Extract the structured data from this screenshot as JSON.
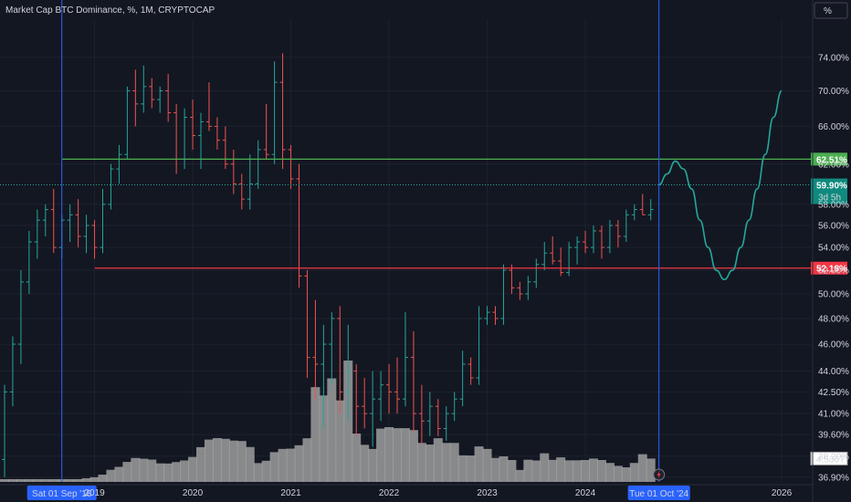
{
  "header": {
    "title": "Market Cap BTC Dominance, %, 1M, CRYPTOCAP",
    "scale_button": "%"
  },
  "colors": {
    "background": "#131722",
    "up": "#26a69a",
    "down": "#ef5350",
    "volume": "#9e9e9e",
    "cursor": "#2962ff",
    "resistance": "#4caf50",
    "support": "#f23645",
    "projection": "#26a69a",
    "text": "#d1d4dc"
  },
  "chart_data": {
    "type": "candlestick",
    "title": "Market Cap BTC Dominance, %, 1M, CRYPTOCAP",
    "y_axis": {
      "scale": "log",
      "ticks": [
        "74.00%",
        "70.00%",
        "66.00%",
        "62.00%",
        "58.00%",
        "56.00%",
        "54.00%",
        "52.00%",
        "50.00%",
        "48.00%",
        "46.00%",
        "44.00%",
        "42.50%",
        "41.00%",
        "39.60%",
        "38.20%",
        "36.90%"
      ],
      "range": [
        36.5,
        78
      ]
    },
    "x_axis": {
      "ticks": [
        "2019",
        "2020",
        "2021",
        "2022",
        "2023",
        "2024",
        "2026"
      ],
      "range": [
        "2018-02",
        "2026-02"
      ]
    },
    "cursor_labels": {
      "left": "Sat 01 Sep '18",
      "right": "Tue 01 Oct '24"
    },
    "horizontal_levels": [
      {
        "label": "62.51%",
        "value": 62.51,
        "start": "2018-09"
      },
      {
        "label": "52.18%",
        "value": 52.18,
        "start": "2019-01"
      }
    ],
    "current_price": {
      "label": "59.90%",
      "value": 59.9,
      "countdown": "3d 5h"
    },
    "volume_label": "4.536T",
    "ohlc": [
      [
        "2018-02",
        38.0,
        43.0,
        36.9,
        42.5
      ],
      [
        "2018-03",
        42.5,
        46.6,
        41.5,
        46.0
      ],
      [
        "2018-04",
        46.0,
        52.0,
        44.5,
        51.0
      ],
      [
        "2018-05",
        51.0,
        55.5,
        50.0,
        54.5
      ],
      [
        "2018-06",
        54.5,
        57.5,
        53.0,
        56.5
      ],
      [
        "2018-07",
        56.5,
        58.0,
        55.0,
        57.5
      ],
      [
        "2018-08",
        57.5,
        59.5,
        53.5,
        54.0
      ],
      [
        "2018-09",
        54.0,
        57.0,
        53.0,
        56.5
      ],
      [
        "2018-10",
        56.5,
        58.0,
        54.5,
        57.0
      ],
      [
        "2018-11",
        57.0,
        58.5,
        54.0,
        55.0
      ],
      [
        "2018-12",
        55.0,
        57.0,
        53.5,
        56.0
      ],
      [
        "2019-01",
        56.0,
        56.5,
        53.0,
        54.0
      ],
      [
        "2019-02",
        54.0,
        59.5,
        53.5,
        58.0
      ],
      [
        "2019-03",
        58.0,
        62.0,
        57.5,
        61.5
      ],
      [
        "2019-04",
        61.5,
        64.0,
        60.0,
        63.0
      ],
      [
        "2019-05",
        63.0,
        70.5,
        62.5,
        70.0
      ],
      [
        "2019-06",
        70.0,
        72.5,
        66.0,
        68.5
      ],
      [
        "2019-07",
        68.5,
        73.0,
        67.5,
        70.5
      ],
      [
        "2019-08",
        70.5,
        71.5,
        68.0,
        69.0
      ],
      [
        "2019-09",
        69.0,
        70.5,
        67.5,
        70.0
      ],
      [
        "2019-10",
        70.0,
        72.0,
        66.5,
        67.5
      ],
      [
        "2019-11",
        67.5,
        68.5,
        61.0,
        62.5
      ],
      [
        "2019-12",
        62.5,
        68.0,
        61.5,
        67.0
      ],
      [
        "2020-01",
        67.0,
        69.0,
        63.5,
        65.0
      ],
      [
        "2020-02",
        65.0,
        67.5,
        61.5,
        66.5
      ],
      [
        "2020-03",
        66.5,
        71.0,
        65.5,
        66.0
      ],
      [
        "2020-04",
        66.0,
        67.0,
        63.5,
        64.5
      ],
      [
        "2020-05",
        64.5,
        66.0,
        61.5,
        62.0
      ],
      [
        "2020-06",
        62.0,
        63.5,
        59.0,
        60.0
      ],
      [
        "2020-07",
        60.0,
        61.0,
        57.5,
        58.5
      ],
      [
        "2020-08",
        58.5,
        63.0,
        57.5,
        60.0
      ],
      [
        "2020-09",
        60.0,
        64.5,
        59.5,
        63.5
      ],
      [
        "2020-10",
        63.5,
        68.5,
        62.5,
        63.0
      ],
      [
        "2020-11",
        63.0,
        73.5,
        62.0,
        71.0
      ],
      [
        "2020-12",
        71.0,
        74.5,
        61.5,
        63.5
      ],
      [
        "2021-01",
        63.5,
        64.0,
        59.5,
        60.5
      ],
      [
        "2021-02",
        60.5,
        62.0,
        50.5,
        51.5
      ],
      [
        "2021-03",
        51.5,
        52.0,
        43.5,
        45.0
      ],
      [
        "2021-04",
        45.0,
        49.5,
        42.0,
        44.5
      ],
      [
        "2021-05",
        44.5,
        47.5,
        40.0,
        46.0
      ],
      [
        "2021-06",
        46.0,
        48.5,
        43.0,
        48.0
      ],
      [
        "2021-07",
        48.0,
        49.0,
        41.0,
        42.5
      ],
      [
        "2021-08",
        42.5,
        47.5,
        40.5,
        44.0
      ],
      [
        "2021-09",
        44.0,
        44.5,
        39.5,
        41.5
      ],
      [
        "2021-10",
        41.5,
        43.5,
        40.0,
        41.0
      ],
      [
        "2021-11",
        41.0,
        44.0,
        38.8,
        42.0
      ],
      [
        "2021-12",
        42.0,
        44.0,
        40.5,
        43.0
      ],
      [
        "2022-01",
        43.0,
        44.5,
        41.0,
        42.5
      ],
      [
        "2022-02",
        42.5,
        45.0,
        41.0,
        42.0
      ],
      [
        "2022-03",
        42.0,
        48.5,
        41.5,
        45.0
      ],
      [
        "2022-04",
        45.0,
        47.0,
        39.8,
        41.0
      ],
      [
        "2022-05",
        41.0,
        43.0,
        39.0,
        40.5
      ],
      [
        "2022-06",
        40.5,
        42.5,
        39.5,
        41.5
      ],
      [
        "2022-07",
        41.5,
        42.0,
        39.5,
        40.0
      ],
      [
        "2022-08",
        40.0,
        41.5,
        39.2,
        41.0
      ],
      [
        "2022-09",
        41.0,
        42.5,
        40.5,
        42.0
      ],
      [
        "2022-10",
        42.0,
        45.5,
        41.5,
        44.5
      ],
      [
        "2022-11",
        44.5,
        45.0,
        43.0,
        43.5
      ],
      [
        "2022-12",
        43.5,
        49.0,
        43.0,
        48.0
      ],
      [
        "2023-01",
        48.0,
        49.0,
        47.5,
        48.5
      ],
      [
        "2023-02",
        48.5,
        49.0,
        47.5,
        48.0
      ],
      [
        "2023-03",
        48.0,
        52.5,
        47.5,
        52.0
      ],
      [
        "2023-04",
        52.0,
        52.5,
        50.0,
        50.5
      ],
      [
        "2023-05",
        50.5,
        51.0,
        49.5,
        50.0
      ],
      [
        "2023-06",
        50.0,
        51.5,
        49.5,
        51.0
      ],
      [
        "2023-07",
        51.0,
        53.0,
        50.5,
        52.5
      ],
      [
        "2023-08",
        52.5,
        54.5,
        52.0,
        53.5
      ],
      [
        "2023-09",
        53.5,
        55.0,
        52.5,
        52.8
      ],
      [
        "2023-10",
        52.8,
        54.0,
        51.5,
        51.8
      ],
      [
        "2023-11",
        51.8,
        54.5,
        51.5,
        54.0
      ],
      [
        "2023-12",
        54.0,
        55.0,
        52.5,
        54.5
      ],
      [
        "2024-01",
        54.5,
        55.5,
        53.5,
        54.0
      ],
      [
        "2024-02",
        54.0,
        56.0,
        53.5,
        55.5
      ],
      [
        "2024-03",
        55.5,
        56.0,
        53.0,
        54.0
      ],
      [
        "2024-04",
        54.0,
        56.5,
        53.5,
        56.0
      ],
      [
        "2024-05",
        56.0,
        56.5,
        54.0,
        55.0
      ],
      [
        "2024-06",
        55.0,
        57.5,
        54.5,
        57.0
      ],
      [
        "2024-07",
        57.0,
        58.0,
        56.5,
        57.5
      ],
      [
        "2024-08",
        57.5,
        59.0,
        57.0,
        57.0
      ],
      [
        "2024-09",
        57.0,
        58.5,
        56.5,
        57.5
      ]
    ],
    "volume": [
      [
        "2018-02",
        0.19
      ],
      [
        "2018-03",
        0.19
      ],
      [
        "2018-04",
        0.19
      ],
      [
        "2018-05",
        0.19
      ],
      [
        "2018-06",
        0.19
      ],
      [
        "2018-07",
        0.19
      ],
      [
        "2018-08",
        0.19
      ],
      [
        "2018-09",
        0.19
      ],
      [
        "2018-10",
        0.19
      ],
      [
        "2018-11",
        0.19
      ],
      [
        "2018-12",
        0.25
      ],
      [
        "2019-01",
        0.32
      ],
      [
        "2019-02",
        0.5
      ],
      [
        "2019-03",
        0.83
      ],
      [
        "2019-04",
        1.03
      ],
      [
        "2019-05",
        1.37
      ],
      [
        "2019-06",
        1.64
      ],
      [
        "2019-07",
        1.59
      ],
      [
        "2019-08",
        1.53
      ],
      [
        "2019-09",
        1.27
      ],
      [
        "2019-10",
        1.26
      ],
      [
        "2019-11",
        1.36
      ],
      [
        "2019-12",
        1.47
      ],
      [
        "2020-01",
        1.71
      ],
      [
        "2020-02",
        2.38
      ],
      [
        "2020-03",
        2.9
      ],
      [
        "2020-04",
        3.0
      ],
      [
        "2020-05",
        2.95
      ],
      [
        "2020-06",
        2.83
      ],
      [
        "2020-07",
        2.8
      ],
      [
        "2020-08",
        2.39
      ],
      [
        "2020-09",
        1.29
      ],
      [
        "2020-10",
        1.45
      ],
      [
        "2020-11",
        2.04
      ],
      [
        "2020-12",
        2.26
      ],
      [
        "2021-01",
        2.28
      ],
      [
        "2021-02",
        2.51
      ],
      [
        "2021-03",
        2.99
      ],
      [
        "2021-04",
        6.49
      ],
      [
        "2021-05",
        5.92
      ],
      [
        "2021-06",
        7.09
      ],
      [
        "2021-07",
        5.58
      ],
      [
        "2021-08",
        8.31
      ],
      [
        "2021-09",
        3.31
      ],
      [
        "2021-10",
        2.54
      ],
      [
        "2021-11",
        2.26
      ],
      [
        "2021-12",
        3.65
      ],
      [
        "2022-01",
        3.75
      ],
      [
        "2022-02",
        3.68
      ],
      [
        "2022-03",
        3.68
      ],
      [
        "2022-04",
        3.55
      ],
      [
        "2022-05",
        2.67
      ],
      [
        "2022-06",
        2.56
      ],
      [
        "2022-07",
        2.99
      ],
      [
        "2022-08",
        2.67
      ],
      [
        "2022-09",
        2.67
      ],
      [
        "2022-10",
        1.82
      ],
      [
        "2022-11",
        1.81
      ],
      [
        "2022-12",
        2.43
      ],
      [
        "2023-01",
        2.26
      ],
      [
        "2023-02",
        1.64
      ],
      [
        "2023-03",
        1.75
      ],
      [
        "2023-04",
        1.5
      ],
      [
        "2023-05",
        0.82
      ],
      [
        "2023-06",
        1.52
      ],
      [
        "2023-07",
        1.47
      ],
      [
        "2023-08",
        1.96
      ],
      [
        "2023-09",
        1.51
      ],
      [
        "2023-10",
        1.68
      ],
      [
        "2023-11",
        1.48
      ],
      [
        "2023-12",
        1.48
      ],
      [
        "2024-01",
        1.5
      ],
      [
        "2024-02",
        1.6
      ],
      [
        "2024-03",
        1.5
      ],
      [
        "2024-04",
        1.3
      ],
      [
        "2024-05",
        1.1
      ],
      [
        "2024-06",
        1.0
      ],
      [
        "2024-07",
        1.3
      ],
      [
        "2024-08",
        1.9
      ],
      [
        "2024-09",
        1.6
      ]
    ],
    "projection": [
      [
        "2024-10",
        59.9
      ],
      [
        "2024-11",
        61.0
      ],
      [
        "2024-12",
        62.3
      ],
      [
        "2025-01",
        61.5
      ],
      [
        "2025-02",
        59.5
      ],
      [
        "2025-03",
        56.5
      ],
      [
        "2025-04",
        54.0
      ],
      [
        "2025-05",
        52.0
      ],
      [
        "2025-06",
        51.2
      ],
      [
        "2025-07",
        52.0
      ],
      [
        "2025-08",
        54.0
      ],
      [
        "2025-09",
        56.5
      ],
      [
        "2025-10",
        59.5
      ],
      [
        "2025-11",
        63.0
      ],
      [
        "2025-12",
        67.0
      ],
      [
        "2026-01",
        70.0
      ]
    ]
  }
}
